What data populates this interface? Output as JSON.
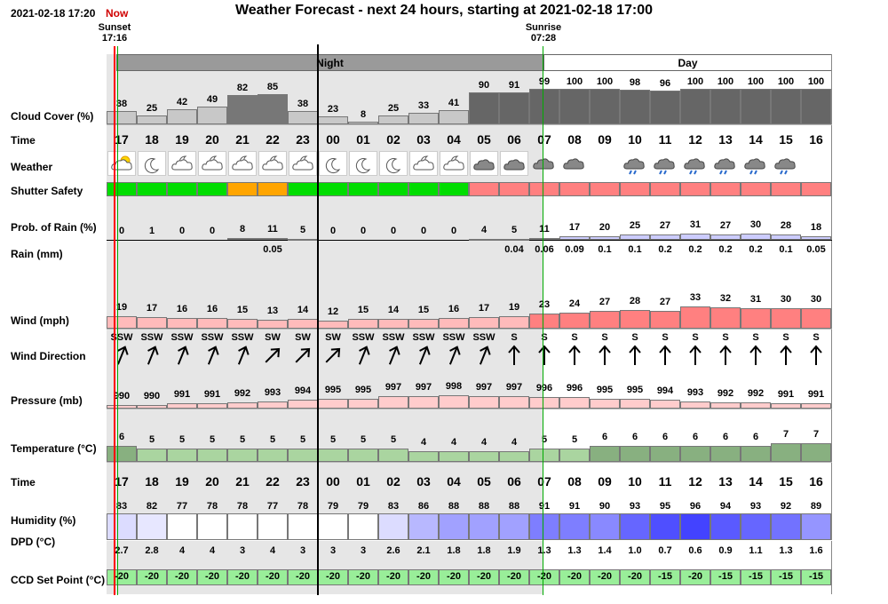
{
  "header": {
    "datetime": "2021-02-18 17:20",
    "now_label": "Now",
    "title": "Weather Forecast - next 24 hours, starting at 2021-02-18 17:00"
  },
  "sun": {
    "sunset_label": "Sunset",
    "sunset_time": "17:16",
    "sunrise_label": "Sunrise",
    "sunrise_time": "07:28"
  },
  "periods": {
    "night": "Night",
    "day": "Day"
  },
  "labels": {
    "cloud": "Cloud Cover (%)",
    "time": "Time",
    "weather": "Weather",
    "shutter": "Shutter Safety",
    "prob": "Prob. of Rain (%)",
    "rain": "Rain (mm)",
    "wind": "Wind (mph)",
    "winddir": "Wind Direction",
    "pressure": "Pressure (mb)",
    "temp": "Temperature (°C)",
    "time2": "Time",
    "humidity": "Humidity (%)",
    "dpd": "DPD (°C)",
    "ccd": "CCD Set Point (°C)"
  },
  "colors": {
    "night_bg": "#e6e6e6",
    "period_bar_night": "#9a9a9a",
    "now_line": "#ff0000",
    "sun_line": "#00aa00",
    "safe": "#00dd00",
    "caution": "#ffa500",
    "unsafe": "#ff8080",
    "rain_bar": "#ccccff",
    "wind_light": "#ffbbbb",
    "wind_dark": "#ff8080",
    "pressure": "#ffcccc",
    "temp_light": "#aad5a0",
    "temp_dark": "#88b080",
    "ccd": "#99ee99"
  },
  "rows": {
    "hours": [
      "17",
      "18",
      "19",
      "20",
      "21",
      "22",
      "23",
      "00",
      "01",
      "02",
      "03",
      "04",
      "05",
      "06",
      "07",
      "08",
      "09",
      "10",
      "11",
      "12",
      "13",
      "14",
      "15",
      "16"
    ],
    "cloud": [
      38,
      25,
      42,
      49,
      82,
      85,
      38,
      23,
      8,
      25,
      33,
      41,
      90,
      91,
      99,
      100,
      100,
      98,
      96,
      100,
      100,
      100,
      100,
      100
    ],
    "weather_icons": [
      "partly-cloudy-sun-icon",
      "moon-icon",
      "cloudy-night-icon",
      "cloudy-night-icon",
      "cloudy-night-icon",
      "cloudy-night-icon",
      "cloudy-night-icon",
      "moon-icon",
      "moon-icon",
      "moon-icon",
      "cloudy-night-icon",
      "cloudy-night-icon",
      "cloud-icon",
      "cloud-icon",
      "cloud-icon",
      "cloud-icon",
      "",
      "rain-icon",
      "rain-icon",
      "rain-icon",
      "rain-icon",
      "rain-icon",
      "rain-icon",
      ""
    ],
    "shutter": [
      "safe",
      "safe",
      "safe",
      "safe",
      "caution",
      "caution",
      "safe",
      "safe",
      "safe",
      "safe",
      "safe",
      "safe",
      "unsafe",
      "unsafe",
      "unsafe",
      "unsafe",
      "unsafe",
      "unsafe",
      "unsafe",
      "unsafe",
      "unsafe",
      "unsafe",
      "unsafe",
      "unsafe"
    ],
    "prob_rain": [
      0,
      1,
      0,
      0,
      8,
      11,
      5,
      0,
      0,
      0,
      0,
      0,
      4,
      5,
      11,
      17,
      20,
      25,
      27,
      31,
      27,
      30,
      28,
      18
    ],
    "rain_mm": [
      "",
      "",
      "",
      "",
      "",
      "0.05",
      "",
      "",
      "",
      "",
      "",
      "",
      "",
      "0.04",
      "0.06",
      "0.09",
      "0.1",
      "0.1",
      "0.2",
      "0.2",
      "0.2",
      "0.2",
      "0.1",
      "0.05"
    ],
    "wind": [
      19,
      17,
      16,
      16,
      15,
      13,
      14,
      12,
      15,
      14,
      15,
      16,
      17,
      19,
      23,
      24,
      27,
      28,
      27,
      33,
      32,
      31,
      30,
      30
    ],
    "wind_dir": [
      "SSW",
      "SSW",
      "SSW",
      "SSW",
      "SSW",
      "SW",
      "SW",
      "SW",
      "SSW",
      "SSW",
      "SSW",
      "SSW",
      "SSW",
      "S",
      "S",
      "S",
      "S",
      "S",
      "S",
      "S",
      "S",
      "S",
      "S",
      "S"
    ],
    "wind_angle": [
      22,
      22,
      22,
      22,
      22,
      45,
      45,
      45,
      22,
      22,
      22,
      22,
      22,
      0,
      0,
      0,
      0,
      0,
      0,
      0,
      0,
      0,
      0,
      0
    ],
    "pressure": [
      990,
      990,
      991,
      991,
      992,
      993,
      994,
      995,
      995,
      997,
      997,
      998,
      997,
      997,
      996,
      996,
      995,
      995,
      994,
      993,
      992,
      992,
      991,
      991
    ],
    "temp": [
      6,
      5,
      5,
      5,
      5,
      5,
      5,
      5,
      5,
      5,
      4,
      4,
      4,
      4,
      5,
      5,
      6,
      6,
      6,
      6,
      6,
      6,
      7,
      7
    ],
    "humidity": [
      83,
      82,
      77,
      78,
      78,
      77,
      78,
      79,
      79,
      83,
      86,
      88,
      88,
      88,
      91,
      91,
      90,
      93,
      95,
      96,
      94,
      93,
      92,
      89
    ],
    "dpd": [
      "2.7",
      "2.8",
      "4",
      "4",
      "3",
      "4",
      "3",
      "3",
      "3",
      "2.6",
      "2.1",
      "1.8",
      "1.8",
      "1.9",
      "1.3",
      "1.3",
      "1.4",
      "1.0",
      "0.7",
      "0.6",
      "0.9",
      "1.1",
      "1.3",
      "1.6"
    ],
    "ccd": [
      -20,
      -20,
      -20,
      -20,
      -20,
      -20,
      -20,
      -20,
      -20,
      -20,
      -20,
      -20,
      -20,
      -20,
      -20,
      -20,
      -20,
      -20,
      -15,
      -20,
      -15,
      -15,
      -15,
      -15
    ]
  }
}
